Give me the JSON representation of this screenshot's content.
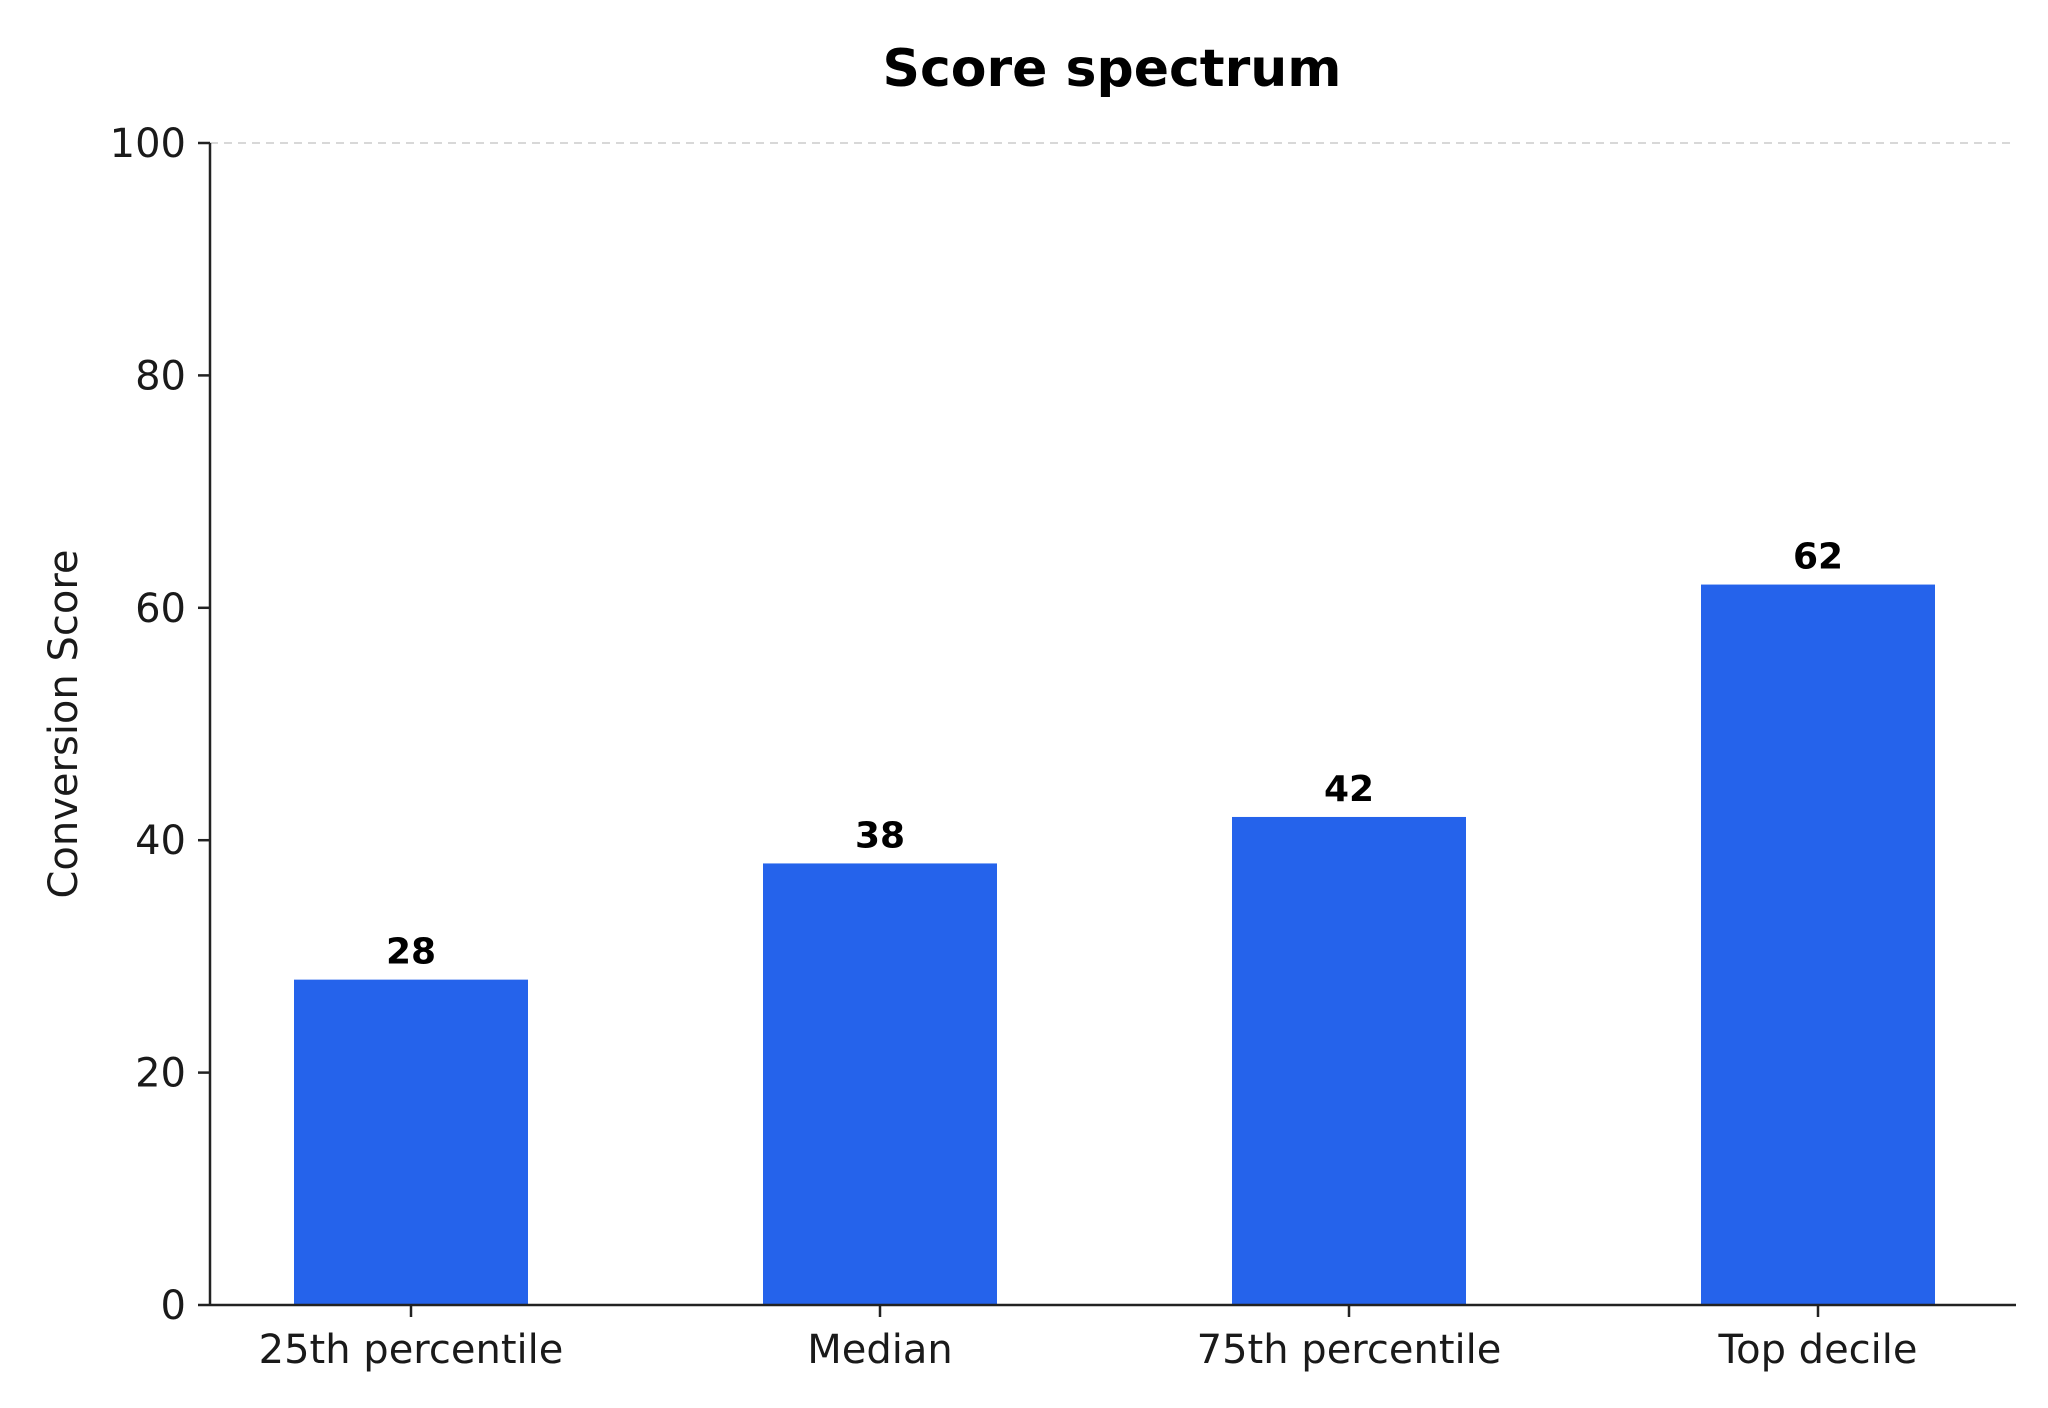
{
  "chart_data": {
    "type": "bar",
    "title": "Score spectrum",
    "xlabel": "",
    "ylabel": "Conversion Score",
    "categories": [
      "25th percentile",
      "Median",
      "75th percentile",
      "Top decile"
    ],
    "values": [
      28,
      38,
      42,
      62
    ],
    "data_labels": [
      "28",
      "38",
      "42",
      "62"
    ],
    "ylim": [
      0,
      100
    ],
    "yticks": [
      0,
      20,
      40,
      60,
      80,
      100
    ],
    "ytick_labels": [
      "0",
      "20",
      "40",
      "60",
      "80",
      "100"
    ],
    "grid": "dashed line at top only",
    "legend": "none",
    "bar_color": "#2563eb"
  }
}
